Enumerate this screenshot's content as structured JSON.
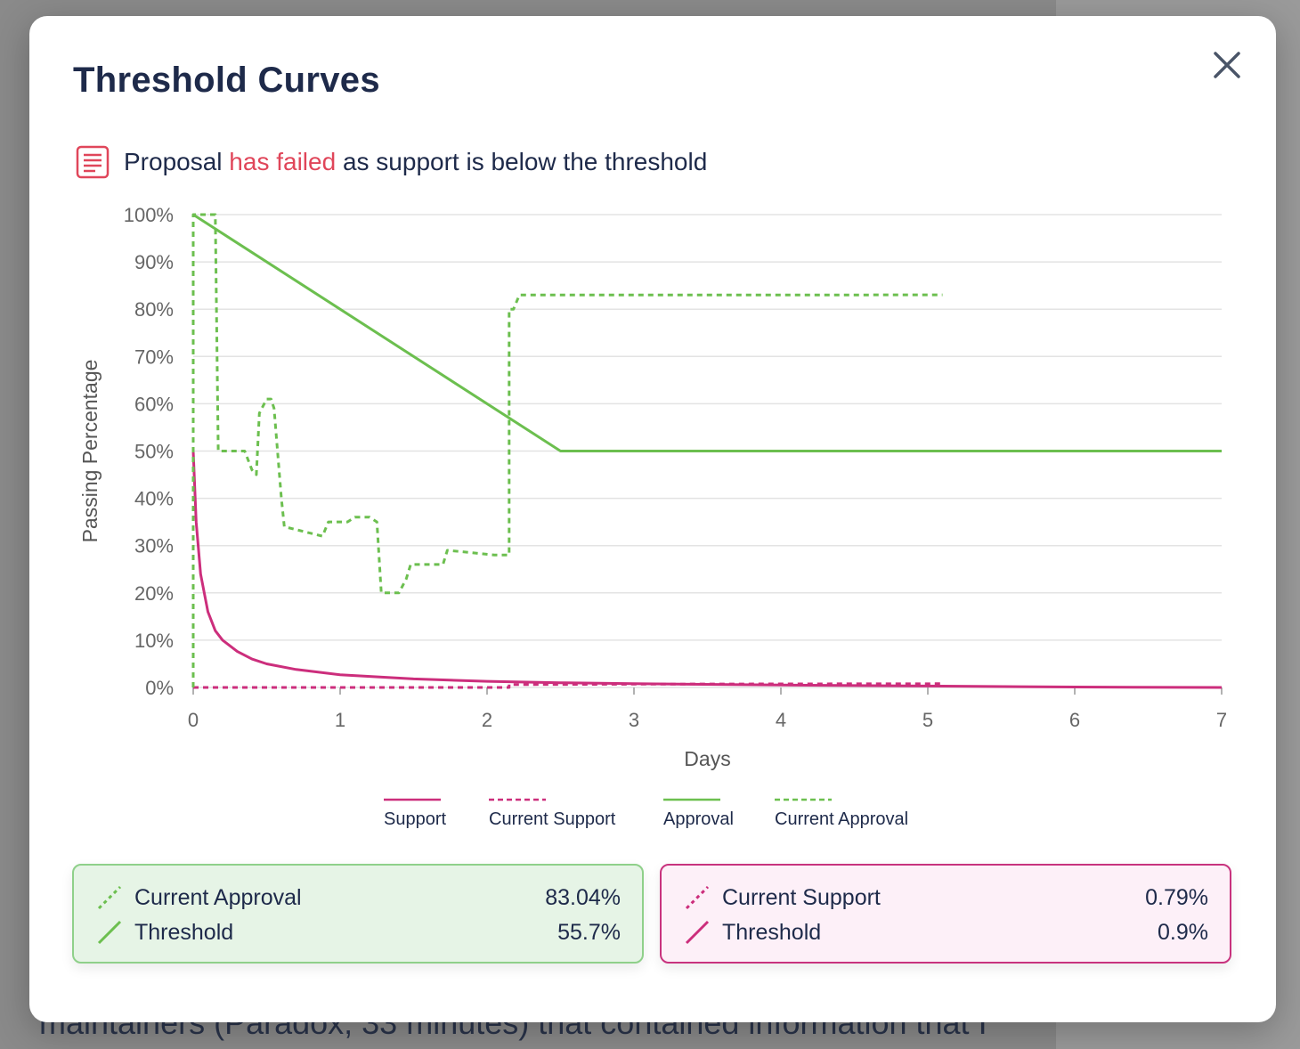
{
  "background": {
    "text": "maintainers (Paradox, 33 minutes) that contained information that I"
  },
  "modal": {
    "title": "Threshold Curves",
    "close_icon": "close-icon",
    "status": {
      "icon": "document-icon",
      "prefix": "Proposal ",
      "highlight": "has failed",
      "suffix": " as support is below the threshold"
    }
  },
  "colors": {
    "approval": "#6cbf4f",
    "support": "#cc2e7c",
    "fail_text": "#e0465a",
    "grid": "#e3e3e3",
    "axis_text": "#666666",
    "title_text": "#1e2a4a"
  },
  "chart_data": {
    "type": "line",
    "xlabel": "Days",
    "ylabel": "Passing Percentage",
    "xlim": [
      0,
      7
    ],
    "ylim": [
      0,
      100
    ],
    "x_ticks": [
      "0",
      "1",
      "2",
      "3",
      "4",
      "5",
      "6",
      "7"
    ],
    "y_ticks": [
      "0%",
      "10%",
      "20%",
      "30%",
      "40%",
      "50%",
      "60%",
      "70%",
      "80%",
      "90%",
      "100%"
    ],
    "grid": true,
    "legend_position": "bottom",
    "series": [
      {
        "name": "Support",
        "style": "solid",
        "color": "#cc2e7c",
        "points": [
          [
            0,
            50
          ],
          [
            0.02,
            35
          ],
          [
            0.05,
            24
          ],
          [
            0.1,
            16
          ],
          [
            0.15,
            12
          ],
          [
            0.2,
            10
          ],
          [
            0.3,
            7.6
          ],
          [
            0.4,
            6
          ],
          [
            0.5,
            5
          ],
          [
            0.7,
            3.8
          ],
          [
            1,
            2.7
          ],
          [
            1.5,
            1.8
          ],
          [
            2,
            1.3
          ],
          [
            2.5,
            1
          ],
          [
            3,
            0.8
          ],
          [
            4,
            0.5
          ],
          [
            5,
            0.3
          ],
          [
            6,
            0.1
          ],
          [
            7,
            0
          ]
        ]
      },
      {
        "name": "Current Support",
        "style": "dashed",
        "color": "#cc2e7c",
        "points": [
          [
            0,
            0
          ],
          [
            2.15,
            0
          ],
          [
            2.15,
            0.6
          ],
          [
            3,
            0.7
          ],
          [
            4,
            0.75
          ],
          [
            5.1,
            0.79
          ]
        ]
      },
      {
        "name": "Approval",
        "style": "solid",
        "color": "#6cbf4f",
        "points": [
          [
            0,
            100
          ],
          [
            2.5,
            50
          ],
          [
            7,
            50
          ]
        ]
      },
      {
        "name": "Current Approval",
        "style": "dashed",
        "color": "#6cbf4f",
        "points": [
          [
            0,
            0
          ],
          [
            0,
            100
          ],
          [
            0.15,
            100
          ],
          [
            0.17,
            50
          ],
          [
            0.35,
            50
          ],
          [
            0.4,
            46
          ],
          [
            0.43,
            45
          ],
          [
            0.45,
            58
          ],
          [
            0.5,
            61
          ],
          [
            0.53,
            61
          ],
          [
            0.55,
            59
          ],
          [
            0.6,
            40
          ],
          [
            0.62,
            34
          ],
          [
            0.75,
            33
          ],
          [
            0.88,
            32
          ],
          [
            0.92,
            35
          ],
          [
            1.05,
            35
          ],
          [
            1.1,
            36
          ],
          [
            1.2,
            36
          ],
          [
            1.25,
            35
          ],
          [
            1.28,
            20
          ],
          [
            1.4,
            20
          ],
          [
            1.45,
            23
          ],
          [
            1.48,
            26
          ],
          [
            1.7,
            26
          ],
          [
            1.73,
            29
          ],
          [
            1.9,
            28.5
          ],
          [
            2.05,
            28
          ],
          [
            2.15,
            28
          ],
          [
            2.15,
            80
          ],
          [
            2.18,
            80
          ],
          [
            2.22,
            83
          ],
          [
            3,
            83
          ],
          [
            4,
            83
          ],
          [
            5.1,
            83.04
          ]
        ]
      }
    ],
    "legend": [
      "Support",
      "Current Support",
      "Approval",
      "Current Approval"
    ]
  },
  "cards": {
    "approval": {
      "current_label": "Current Approval",
      "current_value": "83.04%",
      "threshold_label": "Threshold",
      "threshold_value": "55.7%"
    },
    "support": {
      "current_label": "Current Support",
      "current_value": "0.79%",
      "threshold_label": "Threshold",
      "threshold_value": "0.9%"
    }
  }
}
